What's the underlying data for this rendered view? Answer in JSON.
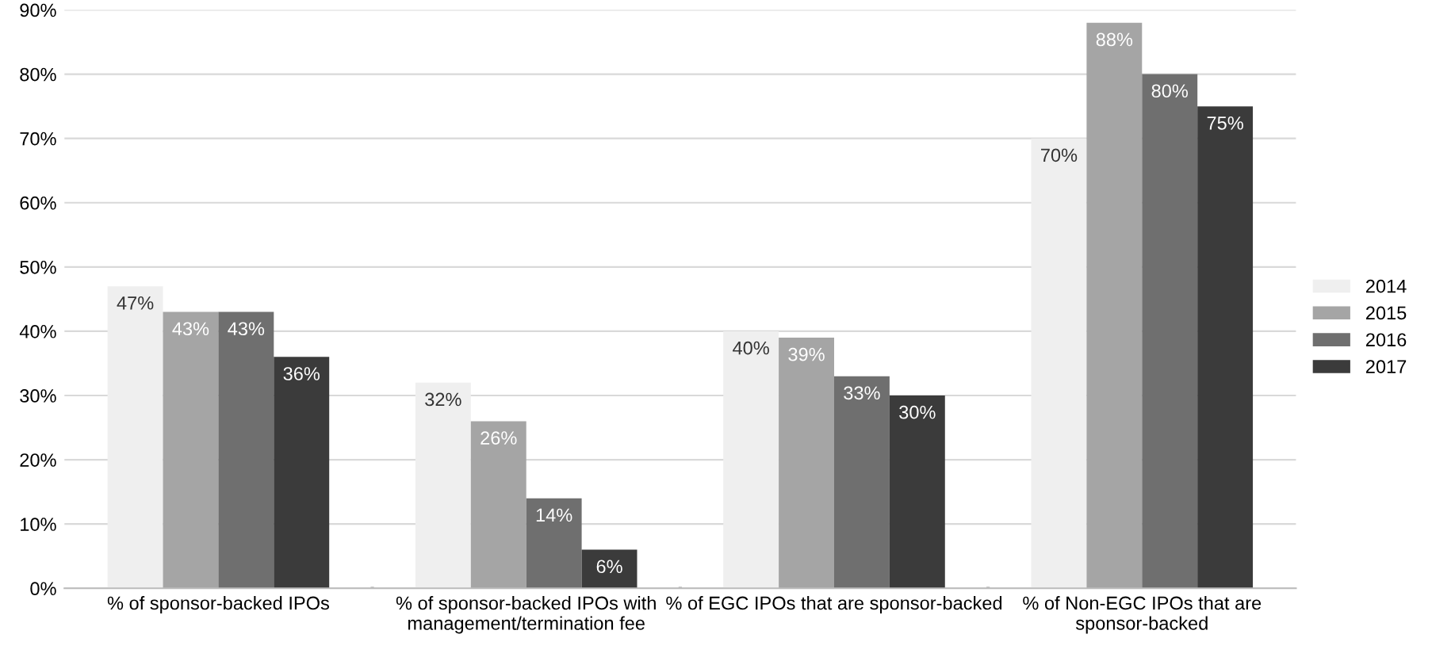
{
  "chart_data": {
    "type": "bar",
    "categories": [
      "% of sponsor-backed IPOs",
      "% of sponsor-backed IPOs with management/termination fee",
      "% of EGC IPOs that are sponsor-backed",
      "% of Non-EGC IPOs that are sponsor-backed"
    ],
    "series": [
      {
        "name": "2014",
        "color": "#efefef",
        "values": [
          47,
          32,
          40,
          70
        ],
        "value_labels": [
          "47%",
          "32%",
          "40%",
          "70%"
        ]
      },
      {
        "name": "2015",
        "color": "#a5a5a5",
        "values": [
          43,
          26,
          39,
          88
        ],
        "value_labels": [
          "43%",
          "26%",
          "39%",
          "88%"
        ]
      },
      {
        "name": "2016",
        "color": "#6f6f6f",
        "values": [
          43,
          14,
          33,
          80
        ],
        "value_labels": [
          "43%",
          "14%",
          "33%",
          "80%"
        ]
      },
      {
        "name": "2017",
        "color": "#3b3b3b",
        "values": [
          36,
          6,
          30,
          75
        ],
        "value_labels": [
          "36%",
          "6%",
          "30%",
          "75%"
        ]
      }
    ],
    "ylim": [
      0,
      90
    ],
    "yticks": [
      {
        "value": 0,
        "label": "0%"
      },
      {
        "value": 10,
        "label": "10%"
      },
      {
        "value": 20,
        "label": "20%"
      },
      {
        "value": 30,
        "label": "30%"
      },
      {
        "value": 40,
        "label": "40%"
      },
      {
        "value": 50,
        "label": "50%"
      },
      {
        "value": 60,
        "label": "60%"
      },
      {
        "value": 70,
        "label": "70%"
      },
      {
        "value": 80,
        "label": "80%"
      },
      {
        "value": 90,
        "label": "90%"
      }
    ],
    "grid": "y",
    "legend": "right"
  }
}
